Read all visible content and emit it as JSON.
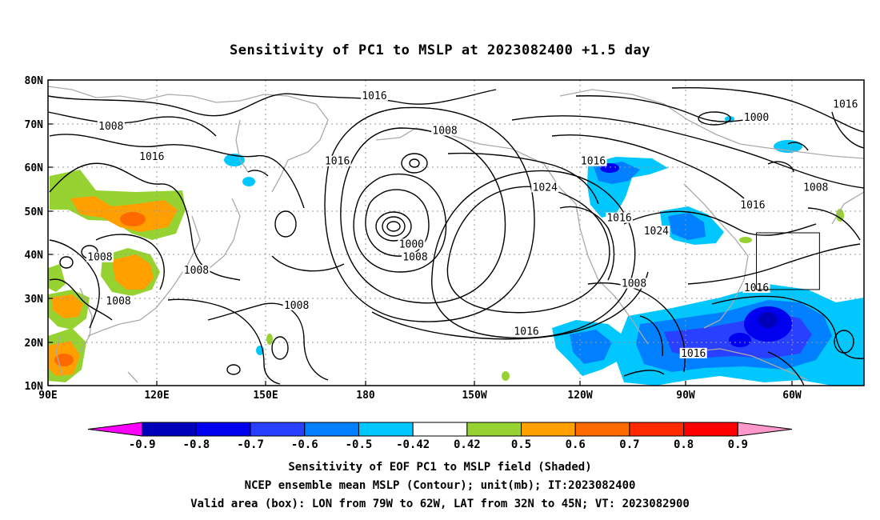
{
  "title": "Sensitivity of PC1 to MSLP at 2023082400 +1.5 day",
  "map": {
    "lat_ticks": [
      "80N",
      "70N",
      "60N",
      "50N",
      "40N",
      "30N",
      "20N",
      "10N"
    ],
    "lon_ticks": [
      "90E",
      "120E",
      "150E",
      "180",
      "150W",
      "120W",
      "90W",
      "60W"
    ],
    "lon_range": [
      90,
      310
    ],
    "lat_range": [
      10,
      80
    ],
    "grid": "dotted"
  },
  "contour_labels": [
    {
      "text": "1016",
      "lon": 178,
      "lat": 76
    },
    {
      "text": "1008",
      "lon": 107,
      "lat": 69
    },
    {
      "text": "1016",
      "lon": 118,
      "lat": 62
    },
    {
      "text": "1016",
      "lon": 168,
      "lat": 61
    },
    {
      "text": "1008",
      "lon": 197,
      "lat": 68
    },
    {
      "text": "1016",
      "lon": 237,
      "lat": 61
    },
    {
      "text": "1024",
      "lon": 224,
      "lat": 55
    },
    {
      "text": "1000",
      "lon": 281,
      "lat": 71
    },
    {
      "text": "1016",
      "lon": 305,
      "lat": 74
    },
    {
      "text": "1008",
      "lon": 297,
      "lat": 55
    },
    {
      "text": "1016",
      "lon": 280,
      "lat": 51
    },
    {
      "text": "1016",
      "lon": 244,
      "lat": 48
    },
    {
      "text": "1024",
      "lon": 254,
      "lat": 45
    },
    {
      "text": "1000",
      "lon": 188,
      "lat": 42
    },
    {
      "text": "1008",
      "lon": 189,
      "lat": 39
    },
    {
      "text": "1008",
      "lon": 104,
      "lat": 39
    },
    {
      "text": "1008",
      "lon": 130,
      "lat": 36
    },
    {
      "text": "1008",
      "lon": 248,
      "lat": 33
    },
    {
      "text": "1016",
      "lon": 281,
      "lat": 32
    },
    {
      "text": "1008",
      "lon": 109,
      "lat": 29
    },
    {
      "text": "1008",
      "lon": 157,
      "lat": 28
    },
    {
      "text": "1016",
      "lon": 219,
      "lat": 22
    },
    {
      "text": "1016",
      "lon": 264,
      "lat": 17
    }
  ],
  "valid_box": {
    "lon_min": -79,
    "lon_max": -62,
    "lat_min": 32,
    "lat_max": 45
  },
  "colorbar": {
    "colors": [
      "#ff00ff",
      "#0000bb",
      "#0000ee",
      "#2a40ff",
      "#0080ff",
      "#00c8ff",
      "#ffffff",
      "#96d232",
      "#ffa000",
      "#ff6a00",
      "#ff2a00",
      "#ff0000",
      "#ff99cc"
    ],
    "tick_labels": [
      "-0.9",
      "-0.8",
      "-0.7",
      "-0.6",
      "-0.5",
      "-0.42",
      "0.42",
      "0.5",
      "0.6",
      "0.7",
      "0.8",
      "0.9"
    ]
  },
  "captions": [
    "Sensitivity of EOF PC1 to MSLP field (Shaded)",
    "NCEP ensemble mean MSLP (Contour); unit(mb); IT:2023082400",
    "Valid area (box): LON from 79W to 62W, LAT from 32N to 45N; VT: 2023082900"
  ]
}
